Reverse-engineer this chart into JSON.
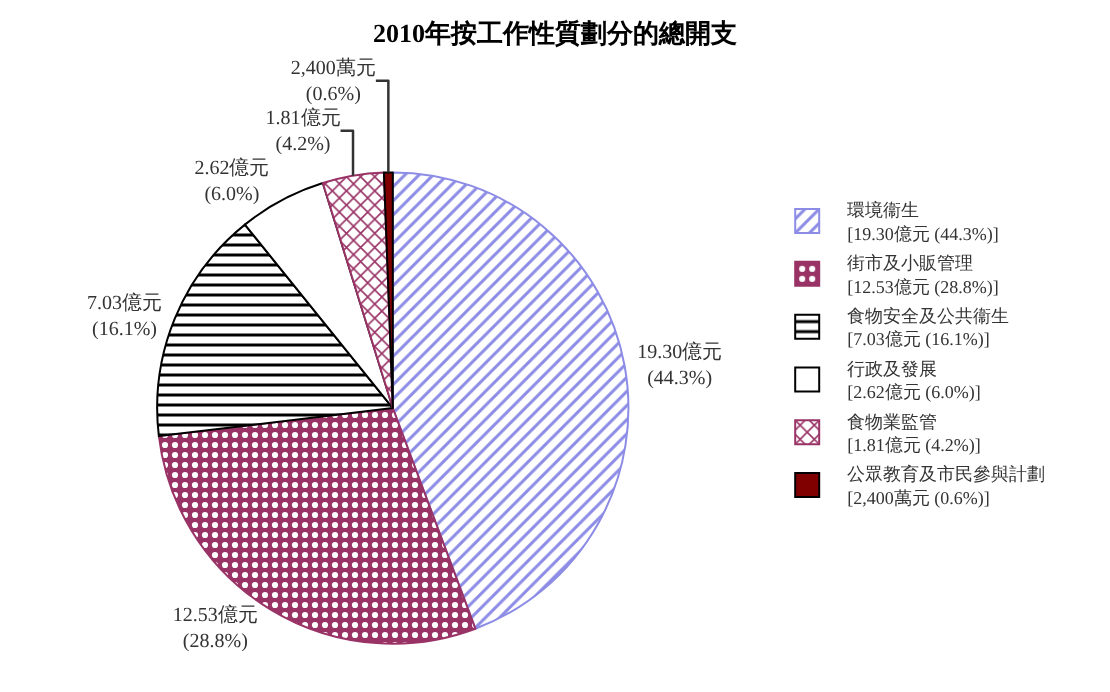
{
  "chart_data": {
    "type": "pie",
    "title": "2010年按工作性質劃分的總開支",
    "categories": [
      "環境衞生\n[19.30億元 (44.3%)]",
      "街市及小販管理\n[12.53億元 (28.8%)]",
      "食物安全及公共衞生\n[7.03億元 (16.1%)]",
      "行政及發展\n[2.62億元 (6.0%)]",
      "食物業監管\n[1.81億元 (4.2%)]",
      "公眾教育及市民參與計劃\n[2,400萬元 (0.6%)]"
    ],
    "values": [
      44.3,
      28.8,
      16.1,
      6.0,
      4.2,
      0.6
    ],
    "value_labels": [
      "19.30億元\n(44.3%)",
      "12.53億元\n(28.8%)",
      "7.03億元\n(16.1%)",
      "2.62億元\n(6.0%)",
      "1.81億元\n(4.2%)",
      "2,400萬元\n(0.6%)"
    ],
    "colors": [
      "#8c8ce6",
      "#993366",
      "#000000",
      "#ffffff",
      "#993366",
      "#800000"
    ],
    "legend": "right"
  }
}
